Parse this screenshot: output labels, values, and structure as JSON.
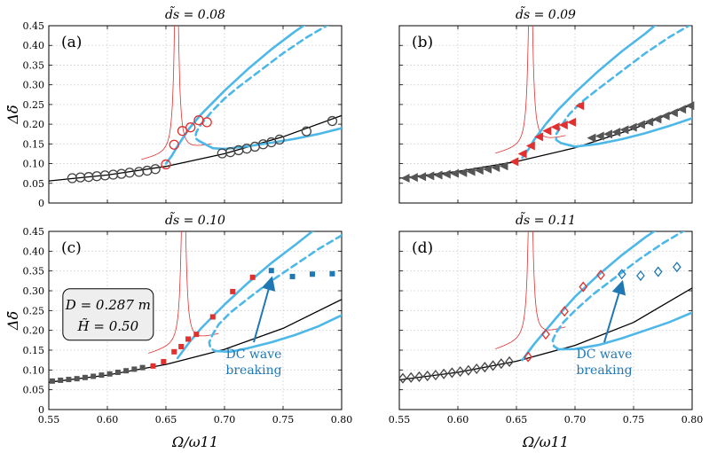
{
  "chart_data": [
    {
      "type": "line",
      "panel_label": "(a)",
      "title": "d̃s = 0.08",
      "xlabel": "Ω/ω11",
      "ylabel": "Δδ̃",
      "xlim": [
        0.55,
        0.8
      ],
      "ylim": [
        0,
        0.45
      ],
      "xticks": [
        "0.55",
        "0.60",
        "0.65",
        "0.70",
        "0.75",
        "0.80"
      ],
      "yticks": [
        "0",
        "0.05",
        "0.10",
        "0.15",
        "0.20",
        "0.25",
        "0.30",
        "0.35",
        "0.40",
        "0.45"
      ],
      "peak_x": 0.659,
      "linear": {
        "x": [
          0.55,
          0.6,
          0.65,
          0.7,
          0.75,
          0.8
        ],
        "y": [
          0.056,
          0.071,
          0.093,
          0.125,
          0.168,
          0.222
        ]
      },
      "stable_upper": {
        "x": [
          0.65,
          0.655,
          0.66,
          0.67,
          0.68,
          0.7,
          0.72,
          0.74,
          0.76,
          0.77
        ],
        "y": [
          0.1,
          0.12,
          0.145,
          0.19,
          0.225,
          0.285,
          0.34,
          0.39,
          0.435,
          0.455
        ]
      },
      "unstable": {
        "x": [
          0.79,
          0.77,
          0.75,
          0.73,
          0.71,
          0.7,
          0.69,
          0.68,
          0.676,
          0.675,
          0.678
        ],
        "y": [
          0.455,
          0.42,
          0.38,
          0.335,
          0.29,
          0.265,
          0.235,
          0.2,
          0.18,
          0.165,
          0.158
        ]
      },
      "stable_lower": {
        "x": [
          0.678,
          0.69,
          0.7,
          0.72,
          0.74,
          0.76,
          0.78,
          0.8
        ],
        "y": [
          0.158,
          0.139,
          0.137,
          0.144,
          0.153,
          0.163,
          0.175,
          0.19
        ]
      },
      "markers_black": {
        "x": [
          0.57,
          0.577,
          0.584,
          0.591,
          0.598,
          0.605,
          0.612,
          0.619,
          0.627,
          0.634,
          0.641,
          0.698,
          0.705,
          0.712,
          0.719,
          0.726,
          0.733,
          0.74,
          0.747,
          0.77,
          0.792
        ],
        "y": [
          0.063,
          0.065,
          0.066,
          0.068,
          0.07,
          0.072,
          0.074,
          0.077,
          0.079,
          0.082,
          0.086,
          0.126,
          0.129,
          0.134,
          0.138,
          0.143,
          0.149,
          0.154,
          0.161,
          0.182,
          0.208
        ]
      },
      "markers_red": {
        "x": [
          0.65,
          0.657,
          0.664,
          0.671,
          0.678,
          0.685
        ],
        "y": [
          0.098,
          0.148,
          0.183,
          0.192,
          0.21,
          0.205
        ]
      }
    },
    {
      "type": "line",
      "panel_label": "(b)",
      "title": "d̃s = 0.09",
      "xlabel": "Ω/ω11",
      "ylabel": "Δδ̃",
      "xlim": [
        0.55,
        0.8
      ],
      "ylim": [
        0,
        0.45
      ],
      "xticks": [
        "0.55",
        "0.60",
        "0.65",
        "0.70",
        "0.75",
        "0.80"
      ],
      "yticks": [
        "0",
        "0.05",
        "0.10",
        "0.15",
        "0.20",
        "0.25",
        "0.30",
        "0.35",
        "0.40",
        "0.45"
      ],
      "peak_x": 0.662,
      "linear": {
        "x": [
          0.55,
          0.6,
          0.65,
          0.7,
          0.75,
          0.8
        ],
        "y": [
          0.063,
          0.08,
          0.105,
          0.14,
          0.188,
          0.25
        ]
      },
      "stable_upper": {
        "x": [
          0.655,
          0.66,
          0.665,
          0.675,
          0.685,
          0.7,
          0.72,
          0.74,
          0.76,
          0.77
        ],
        "y": [
          0.115,
          0.135,
          0.16,
          0.2,
          0.235,
          0.28,
          0.335,
          0.385,
          0.43,
          0.455
        ]
      },
      "unstable": {
        "x": [
          0.8,
          0.78,
          0.76,
          0.74,
          0.72,
          0.705,
          0.695,
          0.688,
          0.684,
          0.684,
          0.688
        ],
        "y": [
          0.455,
          0.42,
          0.38,
          0.335,
          0.29,
          0.255,
          0.225,
          0.195,
          0.175,
          0.16,
          0.152
        ]
      },
      "stable_lower": {
        "x": [
          0.688,
          0.7,
          0.72,
          0.74,
          0.76,
          0.78,
          0.8
        ],
        "y": [
          0.152,
          0.143,
          0.15,
          0.162,
          0.177,
          0.195,
          0.215
        ]
      },
      "markers_black": {
        "x": [
          0.555,
          0.562,
          0.569,
          0.576,
          0.583,
          0.59,
          0.597,
          0.604,
          0.611,
          0.618,
          0.625,
          0.632,
          0.639,
          0.714,
          0.721,
          0.728,
          0.735,
          0.742,
          0.749,
          0.756,
          0.763,
          0.77,
          0.777,
          0.784,
          0.791,
          0.798
        ],
        "y": [
          0.063,
          0.065,
          0.067,
          0.069,
          0.071,
          0.073,
          0.075,
          0.077,
          0.08,
          0.083,
          0.086,
          0.09,
          0.094,
          0.165,
          0.17,
          0.175,
          0.18,
          0.186,
          0.192,
          0.199,
          0.206,
          0.213,
          0.221,
          0.229,
          0.238,
          0.247
        ]
      },
      "markers_red": {
        "x": [
          0.648,
          0.655,
          0.662,
          0.669,
          0.676,
          0.683,
          0.69,
          0.697,
          0.704
        ],
        "y": [
          0.105,
          0.125,
          0.145,
          0.168,
          0.183,
          0.193,
          0.198,
          0.205,
          0.247
        ]
      }
    },
    {
      "type": "line",
      "panel_label": "(c)",
      "title": "d̃s = 0.10",
      "xlabel": "Ω/ω11",
      "ylabel": "Δδ̃",
      "xlim": [
        0.55,
        0.8
      ],
      "ylim": [
        0,
        0.45
      ],
      "xticks": [
        "0.55",
        "0.60",
        "0.65",
        "0.70",
        "0.75",
        "0.80"
      ],
      "yticks": [
        "0",
        "0.05",
        "0.10",
        "0.15",
        "0.20",
        "0.25",
        "0.30",
        "0.35",
        "0.40",
        "0.45"
      ],
      "peak_x": 0.665,
      "linear": {
        "x": [
          0.55,
          0.6,
          0.65,
          0.7,
          0.75,
          0.8
        ],
        "y": [
          0.069,
          0.087,
          0.114,
          0.152,
          0.205,
          0.278
        ]
      },
      "stable_upper": {
        "x": [
          0.66,
          0.665,
          0.67,
          0.68,
          0.69,
          0.7,
          0.72,
          0.74,
          0.76,
          0.775
        ],
        "y": [
          0.13,
          0.15,
          0.17,
          0.205,
          0.235,
          0.265,
          0.32,
          0.37,
          0.415,
          0.45
        ]
      },
      "unstable": {
        "x": [
          0.8,
          0.78,
          0.76,
          0.74,
          0.72,
          0.705,
          0.695,
          0.69,
          0.687,
          0.688,
          0.692
        ],
        "y": [
          0.44,
          0.405,
          0.365,
          0.325,
          0.28,
          0.245,
          0.215,
          0.19,
          0.17,
          0.155,
          0.148
        ]
      },
      "stable_lower": {
        "x": [
          0.692,
          0.705,
          0.72,
          0.74,
          0.76,
          0.78,
          0.8
        ],
        "y": [
          0.148,
          0.146,
          0.155,
          0.17,
          0.188,
          0.21,
          0.238
        ]
      },
      "markers_black": {
        "x": [
          0.553,
          0.56,
          0.567,
          0.574,
          0.581,
          0.588,
          0.595,
          0.602,
          0.609,
          0.616,
          0.623,
          0.63
        ],
        "y": [
          0.072,
          0.074,
          0.076,
          0.078,
          0.081,
          0.084,
          0.087,
          0.09,
          0.094,
          0.098,
          0.102,
          0.106
        ]
      },
      "markers_red": {
        "x": [
          0.639,
          0.648,
          0.657,
          0.663,
          0.669,
          0.676,
          0.69,
          0.707,
          0.724
        ],
        "y": [
          0.11,
          0.121,
          0.146,
          0.159,
          0.178,
          0.19,
          0.234,
          0.298,
          0.334
        ]
      },
      "markers_blue": {
        "x": [
          0.74,
          0.758,
          0.775,
          0.792
        ],
        "y": [
          0.351,
          0.336,
          0.342,
          0.343
        ]
      },
      "annotation": {
        "text_lines": [
          "DC wave",
          "breaking"
        ],
        "arrow_from": [
          0.725,
          0.17
        ],
        "arrow_to": [
          0.74,
          0.342
        ]
      },
      "info_box": {
        "line1": "D = 0.287 m",
        "line2": "H̃ = 0.50"
      }
    },
    {
      "type": "line",
      "panel_label": "(d)",
      "title": "d̃s = 0.11",
      "xlabel": "Ω/ω11",
      "ylabel": "Δδ̃",
      "xlim": [
        0.55,
        0.8
      ],
      "ylim": [
        0,
        0.45
      ],
      "xticks": [
        "0.55",
        "0.60",
        "0.65",
        "0.70",
        "0.75",
        "0.80"
      ],
      "yticks": [
        "0",
        "0.05",
        "0.10",
        "0.15",
        "0.20",
        "0.25",
        "0.30",
        "0.35",
        "0.40",
        "0.45"
      ],
      "peak_x": 0.662,
      "linear": {
        "x": [
          0.55,
          0.6,
          0.65,
          0.7,
          0.75,
          0.8
        ],
        "y": [
          0.075,
          0.094,
          0.122,
          0.162,
          0.22,
          0.307
        ]
      },
      "stable_upper": {
        "x": [
          0.655,
          0.66,
          0.665,
          0.675,
          0.685,
          0.7,
          0.72,
          0.74,
          0.76,
          0.77
        ],
        "y": [
          0.125,
          0.145,
          0.165,
          0.2,
          0.235,
          0.285,
          0.34,
          0.39,
          0.435,
          0.455
        ]
      },
      "unstable": {
        "x": [
          0.795,
          0.775,
          0.755,
          0.735,
          0.715,
          0.7,
          0.69,
          0.684,
          0.681,
          0.682,
          0.686
        ],
        "y": [
          0.455,
          0.42,
          0.38,
          0.335,
          0.29,
          0.25,
          0.22,
          0.195,
          0.175,
          0.16,
          0.152
        ]
      },
      "stable_lower": {
        "x": [
          0.686,
          0.7,
          0.72,
          0.74,
          0.76,
          0.78,
          0.8
        ],
        "y": [
          0.152,
          0.153,
          0.163,
          0.18,
          0.2,
          0.22,
          0.245
        ]
      },
      "markers_black": {
        "x": [
          0.553,
          0.56,
          0.567,
          0.574,
          0.581,
          0.588,
          0.595,
          0.602,
          0.609,
          0.616,
          0.623,
          0.63,
          0.637,
          0.644
        ],
        "y": [
          0.079,
          0.081,
          0.083,
          0.085,
          0.087,
          0.09,
          0.093,
          0.096,
          0.099,
          0.103,
          0.107,
          0.111,
          0.116,
          0.121
        ]
      },
      "markers_red": {
        "x": [
          0.66,
          0.675,
          0.691,
          0.707,
          0.722
        ],
        "y": [
          0.133,
          0.19,
          0.248,
          0.31,
          0.34
        ]
      },
      "markers_blue": {
        "x": [
          0.74,
          0.756,
          0.771,
          0.787
        ],
        "y": [
          0.342,
          0.338,
          0.348,
          0.36
        ]
      },
      "annotation": {
        "text_lines": [
          "DC wave",
          "breaking"
        ],
        "arrow_from": [
          0.725,
          0.17
        ],
        "arrow_to": [
          0.74,
          0.332
        ]
      }
    }
  ],
  "colors": {
    "linear": "#000000",
    "backbone": "#4db8e8",
    "peak": "#e03030",
    "red_marker": "#e03030",
    "blue_marker": "#1f78b4",
    "black_marker": "#555555",
    "annotation": "#1f78b4"
  }
}
